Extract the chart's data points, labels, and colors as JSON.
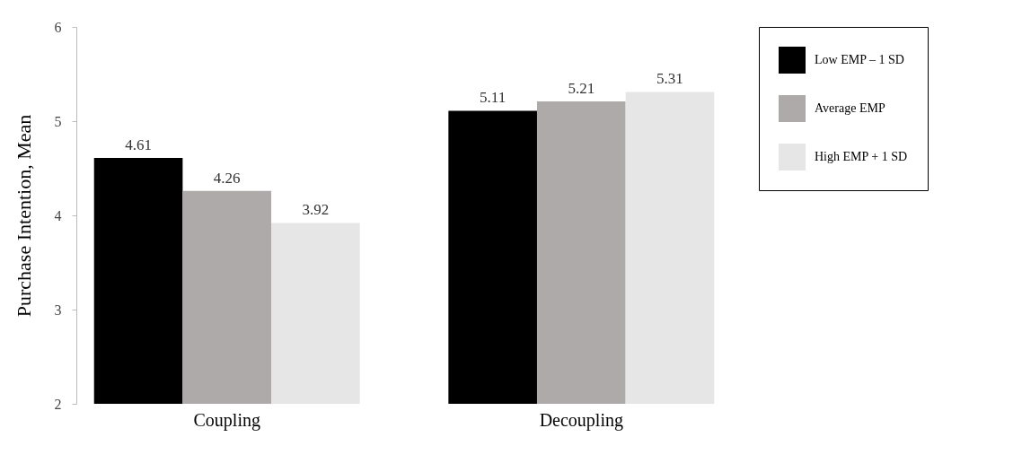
{
  "chart_data": {
    "type": "bar",
    "ylabel": "Purchase Intention, Mean",
    "categories": [
      "Coupling",
      "Decoupling"
    ],
    "series": [
      {
        "name": "Low EMP – 1 SD",
        "color": "#000000",
        "values": [
          4.61,
          5.11
        ]
      },
      {
        "name": "Average EMP",
        "color": "#aeaaaa",
        "values": [
          4.26,
          5.21
        ]
      },
      {
        "name": "High EMP + 1 SD",
        "color": "#e6e6e6",
        "values": [
          3.92,
          5.31
        ]
      }
    ],
    "ylim": [
      2,
      6
    ],
    "yticks": [
      2,
      3,
      4,
      5,
      6
    ],
    "grid": false,
    "legend": "right",
    "data_labels": true
  }
}
